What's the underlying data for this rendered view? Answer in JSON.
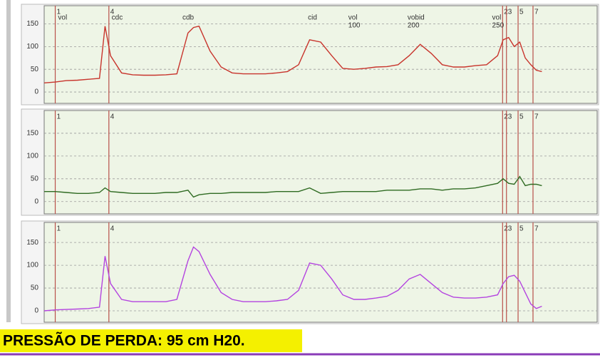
{
  "chart_data": [
    {
      "type": "line",
      "xlim": [
        0,
        100
      ],
      "ylim": [
        -25,
        190
      ],
      "yticks": [
        0,
        50,
        100,
        150
      ],
      "grid": true,
      "x": [
        0,
        2,
        4,
        6,
        8,
        10,
        11,
        12,
        14,
        16,
        18,
        20,
        22,
        24,
        26,
        27,
        28,
        30,
        32,
        34,
        36,
        38,
        40,
        42,
        44,
        46,
        48,
        50,
        52,
        54,
        56,
        58,
        60,
        62,
        64,
        66,
        68,
        70,
        72,
        74,
        76,
        78,
        80,
        82,
        83,
        84,
        85,
        86,
        87,
        88,
        89,
        90
      ],
      "series": [
        {
          "color": "#c8342c",
          "values": [
            20,
            22,
            25,
            26,
            28,
            30,
            145,
            80,
            42,
            38,
            37,
            37,
            38,
            40,
            130,
            142,
            145,
            90,
            55,
            42,
            40,
            40,
            40,
            42,
            45,
            60,
            115,
            110,
            80,
            52,
            50,
            52,
            55,
            56,
            60,
            80,
            105,
            85,
            60,
            55,
            55,
            58,
            60,
            80,
            115,
            120,
            100,
            110,
            75,
            60,
            48,
            45
          ]
        }
      ],
      "markers": [
        {
          "label": "1",
          "x": 2
        },
        {
          "label": "4",
          "x": 11.7
        },
        {
          "label": "2",
          "x": 82.9
        },
        {
          "label": "3",
          "x": 83.6
        },
        {
          "label": "5",
          "x": 85.7
        },
        {
          "label": "7",
          "x": 88.4
        }
      ],
      "annotations": [
        {
          "lines": [
            "vol"
          ],
          "x": 2.5
        },
        {
          "lines": [
            "cdc"
          ],
          "x": 12.2
        },
        {
          "lines": [
            "cdb"
          ],
          "x": 25
        },
        {
          "lines": [
            "cid"
          ],
          "x": 47.7
        },
        {
          "lines": [
            "vol",
            "100"
          ],
          "x": 55
        },
        {
          "lines": [
            "vobid",
            "200"
          ],
          "x": 65.7
        },
        {
          "lines": [
            "vol",
            "250"
          ],
          "x": 81
        }
      ]
    },
    {
      "type": "line",
      "xlim": [
        0,
        100
      ],
      "ylim": [
        -27,
        200
      ],
      "yticks": [
        0,
        50,
        100,
        150
      ],
      "grid": true,
      "x": [
        0,
        2,
        4,
        6,
        8,
        10,
        11,
        12,
        14,
        16,
        18,
        20,
        22,
        24,
        26,
        27,
        28,
        30,
        32,
        34,
        36,
        38,
        40,
        42,
        44,
        46,
        48,
        50,
        52,
        54,
        56,
        58,
        60,
        62,
        64,
        66,
        68,
        70,
        72,
        74,
        76,
        78,
        80,
        82,
        83,
        84,
        85,
        86,
        87,
        88,
        89,
        90
      ],
      "series": [
        {
          "color": "#2f6b22",
          "values": [
            22,
            22,
            20,
            18,
            18,
            20,
            30,
            22,
            20,
            18,
            18,
            18,
            20,
            20,
            25,
            10,
            15,
            18,
            18,
            20,
            20,
            20,
            20,
            22,
            22,
            22,
            30,
            18,
            20,
            22,
            22,
            22,
            22,
            25,
            25,
            25,
            28,
            28,
            25,
            28,
            28,
            30,
            35,
            40,
            50,
            40,
            38,
            55,
            35,
            38,
            38,
            35
          ]
        }
      ],
      "markers": [
        {
          "label": "1",
          "x": 2
        },
        {
          "label": "4",
          "x": 11.7
        },
        {
          "label": "2",
          "x": 82.9
        },
        {
          "label": "3",
          "x": 83.6
        },
        {
          "label": "5",
          "x": 85.7
        },
        {
          "label": "7",
          "x": 88.4
        }
      ]
    },
    {
      "type": "line",
      "xlim": [
        0,
        100
      ],
      "ylim": [
        -25,
        194
      ],
      "yticks": [
        0,
        50,
        100,
        150
      ],
      "grid": true,
      "x": [
        0,
        2,
        4,
        6,
        8,
        10,
        11,
        12,
        14,
        16,
        18,
        20,
        22,
        24,
        26,
        27,
        28,
        30,
        32,
        34,
        36,
        38,
        40,
        42,
        44,
        46,
        48,
        50,
        52,
        54,
        56,
        58,
        60,
        62,
        64,
        66,
        68,
        70,
        72,
        74,
        76,
        78,
        80,
        82,
        83,
        84,
        85,
        86,
        87,
        88,
        89,
        90
      ],
      "series": [
        {
          "color": "#b444e0",
          "values": [
            0,
            2,
            3,
            4,
            5,
            8,
            120,
            60,
            25,
            20,
            20,
            20,
            20,
            25,
            110,
            140,
            130,
            80,
            40,
            25,
            20,
            20,
            20,
            22,
            25,
            45,
            105,
            100,
            70,
            35,
            25,
            25,
            28,
            32,
            45,
            70,
            80,
            60,
            40,
            30,
            28,
            28,
            30,
            35,
            60,
            75,
            78,
            65,
            40,
            15,
            5,
            10
          ]
        }
      ],
      "markers": [
        {
          "label": "1",
          "x": 2
        },
        {
          "label": "4",
          "x": 11.7
        },
        {
          "label": "2",
          "x": 82.9
        },
        {
          "label": "3",
          "x": 83.6
        },
        {
          "label": "5",
          "x": 85.7
        },
        {
          "label": "7",
          "x": 88.4
        }
      ]
    }
  ],
  "caption": "PRESSÃO DE PERDA: 95 cm H20."
}
